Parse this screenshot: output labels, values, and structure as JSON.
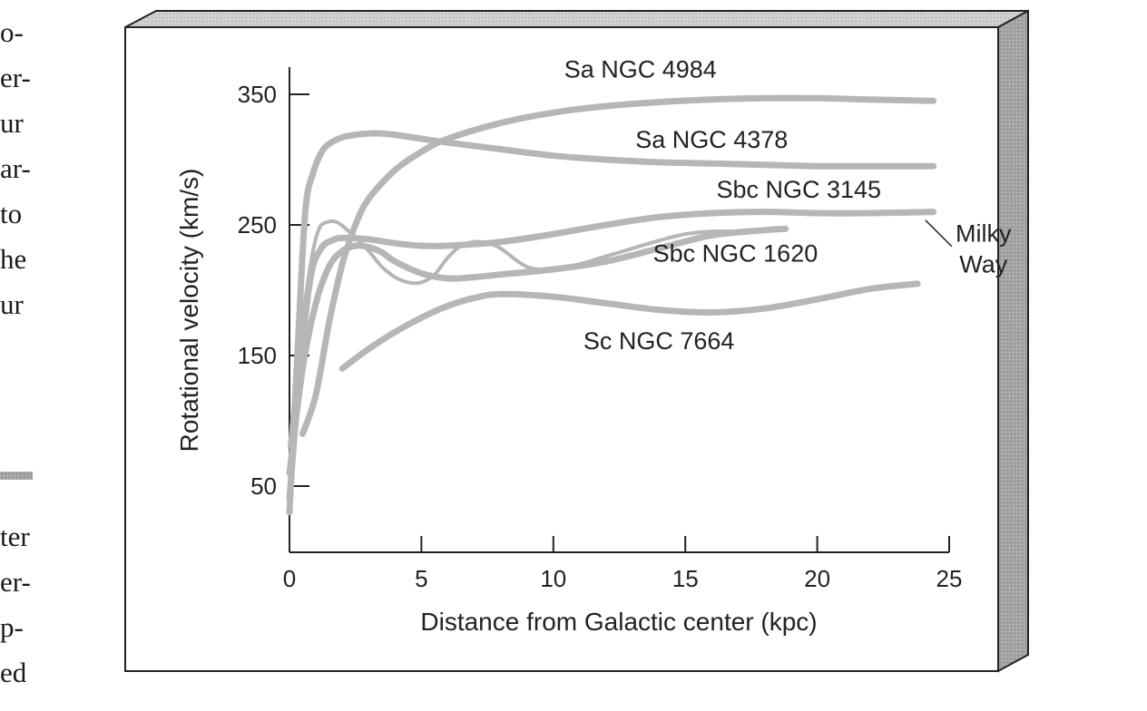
{
  "side_text": {
    "upper_lines": [
      "o-",
      "er-",
      "ur",
      "ar-",
      "to",
      "he",
      "ur"
    ],
    "lower_lines": [
      "ter",
      "er-",
      "p-",
      "ed"
    ]
  },
  "colors": {
    "curve": "#b6b6b6",
    "frame_side": "#9a9a9a",
    "frame_top": "#cfcfcf",
    "rule": "#a8a8a8",
    "ink": "#222222"
  },
  "chart_data": {
    "type": "line",
    "xlabel": "Distance from Galactic center (kpc)",
    "ylabel": "Rotational velocity (km/s)",
    "xlim": [
      0,
      25
    ],
    "ylim": [
      0,
      370
    ],
    "x_ticks": [
      0,
      5,
      10,
      15,
      20,
      25
    ],
    "y_ticks": [
      50,
      150,
      250,
      350
    ],
    "x_tick_labels": [
      "0",
      "5",
      "10",
      "15",
      "20",
      "25"
    ],
    "y_tick_labels": [
      "50",
      "150",
      "250",
      "350"
    ],
    "grid": false,
    "legend": "inline labels",
    "series": [
      {
        "name": "Sa NGC 4984",
        "label_at": [
          13.3,
          363
        ],
        "x": [
          0.5,
          1,
          1.5,
          2,
          2.5,
          3,
          4,
          5,
          6,
          8,
          10,
          12,
          14,
          16,
          18,
          20,
          22,
          24.4
        ],
        "y": [
          90,
          120,
          175,
          220,
          250,
          270,
          292,
          306,
          316,
          328,
          336,
          341,
          344,
          346,
          347,
          347,
          346,
          345
        ]
      },
      {
        "name": "Sa NGC 4378",
        "label_at": [
          16.0,
          309
        ],
        "x": [
          0,
          0.3,
          0.6,
          0.9,
          1.2,
          1.5,
          2,
          2.5,
          3,
          3.5,
          4,
          5,
          6,
          8,
          10,
          12,
          14,
          16,
          18,
          20,
          22,
          24.4
        ],
        "y": [
          30,
          150,
          260,
          290,
          305,
          312,
          317,
          319,
          320,
          320,
          319,
          316,
          313,
          308,
          303,
          300,
          298,
          297,
          296,
          295,
          295,
          295
        ]
      },
      {
        "name": "Sbc NGC 3145",
        "label_at": [
          19.3,
          271
        ],
        "x": [
          0,
          0.4,
          0.8,
          1.2,
          1.6,
          2,
          3,
          4,
          5,
          6,
          8,
          10,
          12,
          14,
          16,
          18,
          20,
          22,
          24.4
        ],
        "y": [
          40,
          140,
          210,
          232,
          238,
          240,
          239,
          236,
          234,
          234,
          237,
          243,
          250,
          256,
          259,
          260,
          259,
          259,
          260
        ]
      },
      {
        "name": "Sbc NGC 1620",
        "label_at": [
          16.9,
          222
        ],
        "x": [
          0,
          0.5,
          1,
          1.5,
          2,
          2.5,
          3,
          3.5,
          4,
          5,
          6,
          7,
          8,
          10,
          12,
          14,
          16,
          18,
          18.8
        ],
        "y": [
          60,
          140,
          190,
          218,
          230,
          234,
          233,
          229,
          222,
          213,
          209,
          210,
          212,
          216,
          222,
          232,
          242,
          246,
          247
        ]
      },
      {
        "name": "Sc NGC 7664",
        "label_at": [
          14.0,
          155
        ],
        "x": [
          2,
          3,
          4,
          5,
          6,
          7,
          8,
          10,
          12,
          14,
          16,
          18,
          20,
          22,
          23.8
        ],
        "y": [
          140,
          155,
          168,
          179,
          188,
          194,
          197,
          195,
          190,
          185,
          183,
          186,
          193,
          201,
          205
        ]
      },
      {
        "name": "Milky Way",
        "label_lines": [
          "Milky",
          "Way"
        ],
        "label_at": [
          26.3,
          237
        ],
        "x": [
          0,
          0.4,
          0.8,
          1.1,
          1.4,
          1.8,
          2.3,
          3,
          3.5,
          4,
          4.5,
          5,
          5.5,
          6,
          6.5,
          7,
          7.5,
          8,
          9,
          10,
          11,
          12,
          13,
          14,
          15,
          16,
          17,
          18,
          18.8
        ],
        "y": [
          80,
          160,
          220,
          246,
          252,
          252,
          244,
          230,
          218,
          210,
          206,
          206,
          212,
          225,
          234,
          237,
          236,
          232,
          218,
          216,
          220,
          226,
          232,
          238,
          243,
          245,
          245,
          246,
          246
        ]
      }
    ]
  }
}
